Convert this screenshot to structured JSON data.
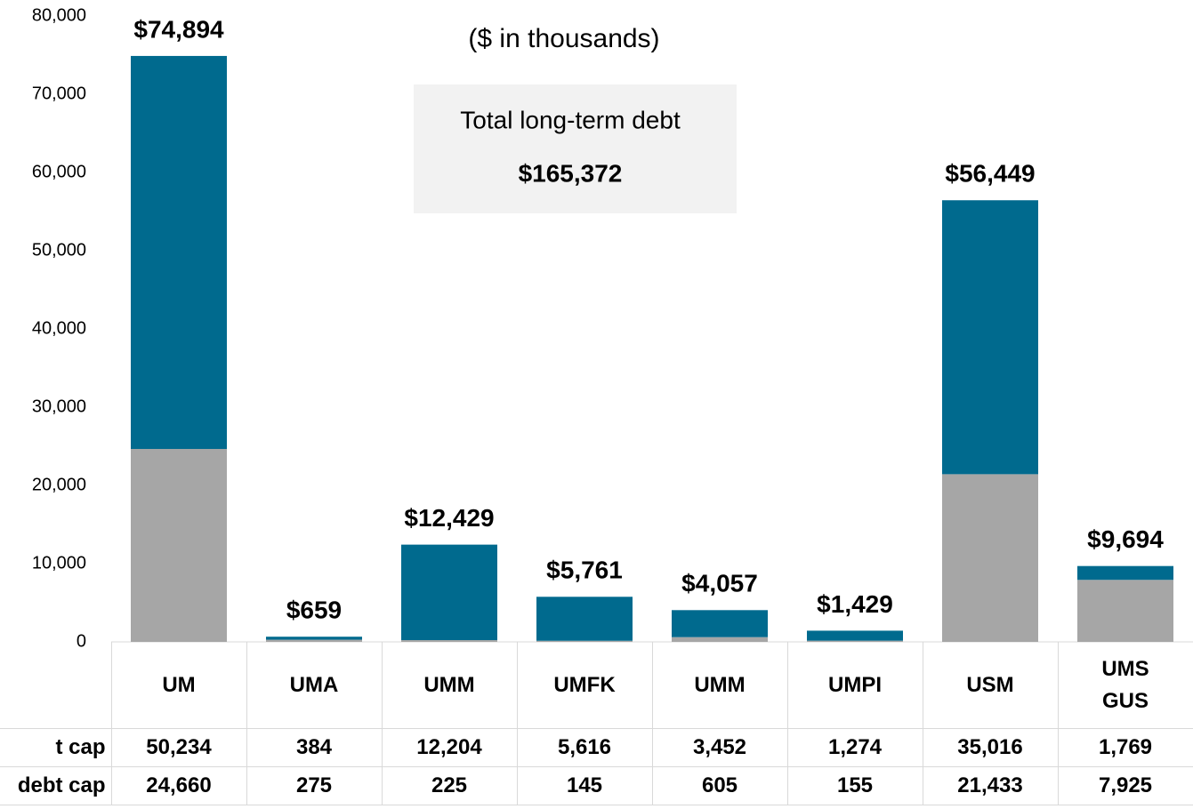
{
  "chart_data": {
    "type": "stacked_bar",
    "subtitle": "($ in thousands)",
    "annotation": {
      "title": "Total long-term debt",
      "value": "$165,372"
    },
    "categories": [
      "UM",
      "UMA",
      "UMM",
      "UMFK",
      "UMM",
      "UMPI",
      "USM",
      "UMS GUS"
    ],
    "series": [
      {
        "name": "debt cap",
        "color": "#a6a6a6",
        "values": [
          24660,
          275,
          225,
          145,
          605,
          155,
          21433,
          7925
        ],
        "value_labels": [
          "24,660",
          "275",
          "225",
          "145",
          "605",
          "155",
          "21,433",
          "7,925"
        ]
      },
      {
        "name": "t cap",
        "color": "#006a8e",
        "values": [
          50234,
          384,
          12204,
          5616,
          3452,
          1274,
          35016,
          1769
        ],
        "value_labels": [
          "50,234",
          "384",
          "12,204",
          "5,616",
          "3,452",
          "1,274",
          "35,016",
          "1,769"
        ]
      }
    ],
    "totals": {
      "values": [
        74894,
        659,
        12429,
        5761,
        4057,
        1429,
        56449,
        9694
      ],
      "value_labels": [
        "$74,894",
        "$659",
        "$12,429",
        "$5,761",
        "$4,057",
        "$1,429",
        "$56,449",
        "$9,694"
      ]
    },
    "table_rows": [
      1,
      0
    ],
    "ylim": [
      0,
      80000
    ],
    "yticks": [
      0,
      {
        "value": 10000,
        "label": "10,000"
      },
      {
        "value": 20000,
        "label": "20,000"
      },
      {
        "value": 30000,
        "label": "30,000"
      },
      {
        "value": 40000,
        "label": "40,000"
      },
      {
        "value": 50000,
        "label": "50,000"
      },
      {
        "value": 60000,
        "label": "60,000"
      },
      {
        "value": 70000,
        "label": "70,000"
      },
      {
        "value": 80000,
        "label": "80,000"
      }
    ]
  }
}
